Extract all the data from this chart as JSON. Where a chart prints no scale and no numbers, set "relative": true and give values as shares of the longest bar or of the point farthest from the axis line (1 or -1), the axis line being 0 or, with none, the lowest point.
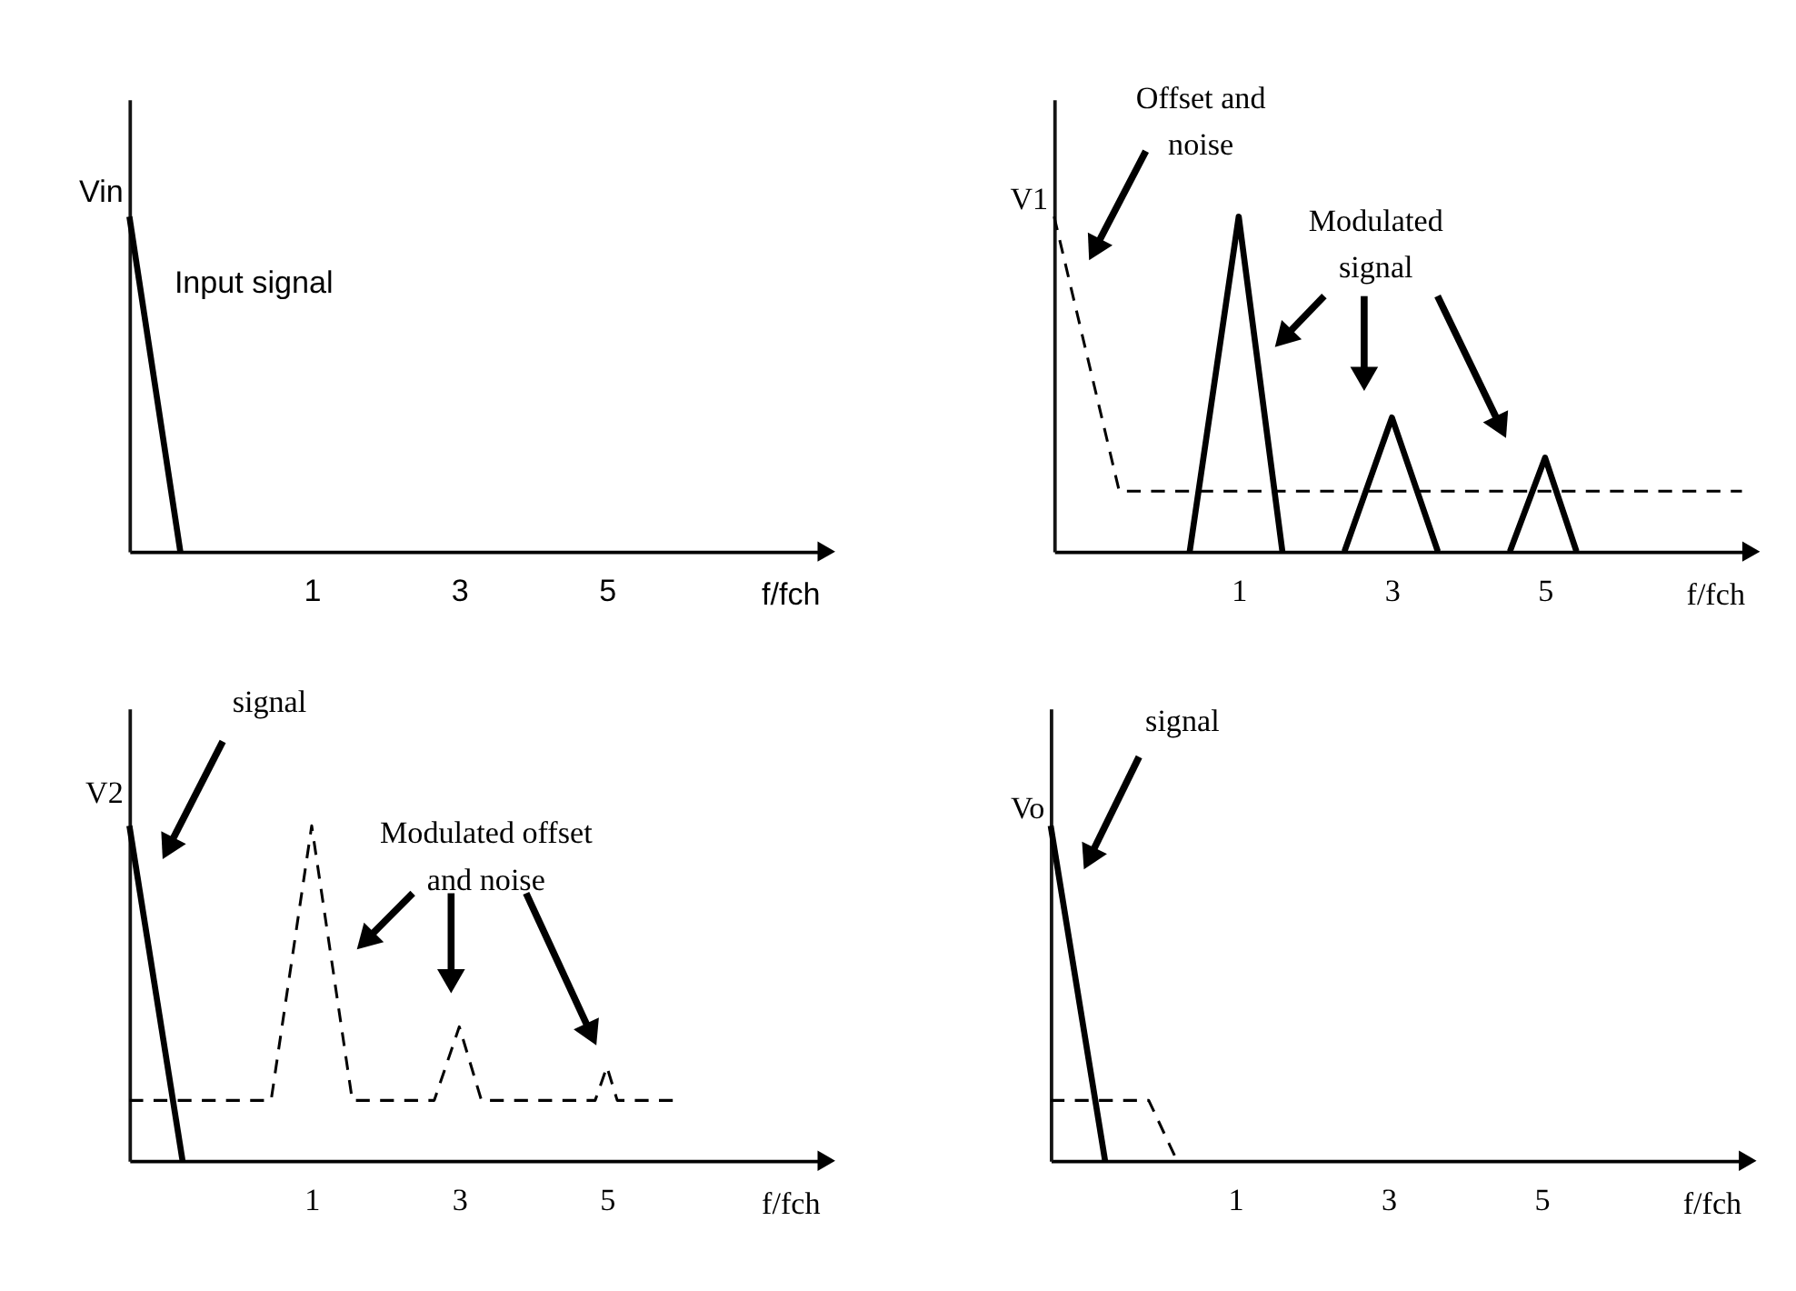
{
  "chart_data": [
    {
      "type": "line",
      "relative": true,
      "ylabel": "Vin",
      "xlabel": "f/fch",
      "xlim": [
        -1.47,
        7.88
      ],
      "xticks": [
        1,
        3,
        5
      ],
      "annotations": [
        "Input signal"
      ],
      "series": [
        {
          "color": "#000000",
          "line_style": "solid",
          "x": [
            -1.47,
            -0.78
          ],
          "values": [
            1,
            0
          ]
        }
      ]
    },
    {
      "type": "line",
      "relative": true,
      "ylabel": "V1",
      "xlabel": "f/fch",
      "xlim": [
        -1.41,
        7.6
      ],
      "xticks": [
        1,
        3,
        5
      ],
      "annotations": [
        "Offset and noise",
        "Modulated signal"
      ],
      "series": [
        {
          "color": "#000000",
          "line_style": "dashed",
          "x": [
            -1.41,
            -0.56,
            7.57
          ],
          "values": [
            1,
            0.18,
            0.18
          ]
        },
        {
          "color": "#000000",
          "line_style": "solid",
          "x": [
            0.36,
            1,
            1.57,
            2,
            2.38,
            3,
            3.6,
            4,
            4.54,
            5,
            5.41
          ],
          "values": [
            0,
            1,
            0,
            null,
            0,
            0.4,
            0,
            null,
            0,
            0.28,
            0
          ]
        }
      ]
    },
    {
      "type": "line",
      "relative": true,
      "ylabel": "V2",
      "xlabel": "f/fch",
      "xlim": [
        -1.47,
        7.88
      ],
      "xticks": [
        1,
        3,
        5
      ],
      "annotations": [
        "signal",
        "Modulated offset and noise"
      ],
      "series": [
        {
          "color": "#000000",
          "line_style": "dashed",
          "x": [
            -1.47,
            0.45,
            1,
            1.55,
            2.66,
            3,
            3.3,
            4.84,
            5,
            5.14,
            5.9
          ],
          "values": [
            0.18,
            0.18,
            1,
            0.18,
            0.18,
            0.4,
            0.18,
            0.18,
            0.28,
            0.18,
            0.18
          ]
        },
        {
          "color": "#000000",
          "line_style": "solid",
          "x": [
            -1.47,
            -0.75
          ],
          "values": [
            1,
            0
          ]
        }
      ]
    },
    {
      "type": "line",
      "relative": true,
      "ylabel": "Vo",
      "xlabel": "f/fch",
      "xlim": [
        -1.41,
        7.6
      ],
      "xticks": [
        1,
        3,
        5
      ],
      "annotations": [
        "signal"
      ],
      "series": [
        {
          "color": "#000000",
          "line_style": "dashed",
          "x": [
            -1.41,
            -0.13,
            0.24
          ],
          "values": [
            0.18,
            0.18,
            0
          ]
        },
        {
          "color": "#000000",
          "line_style": "solid",
          "x": [
            -1.41,
            -0.7
          ],
          "values": [
            1,
            0
          ]
        }
      ]
    }
  ]
}
